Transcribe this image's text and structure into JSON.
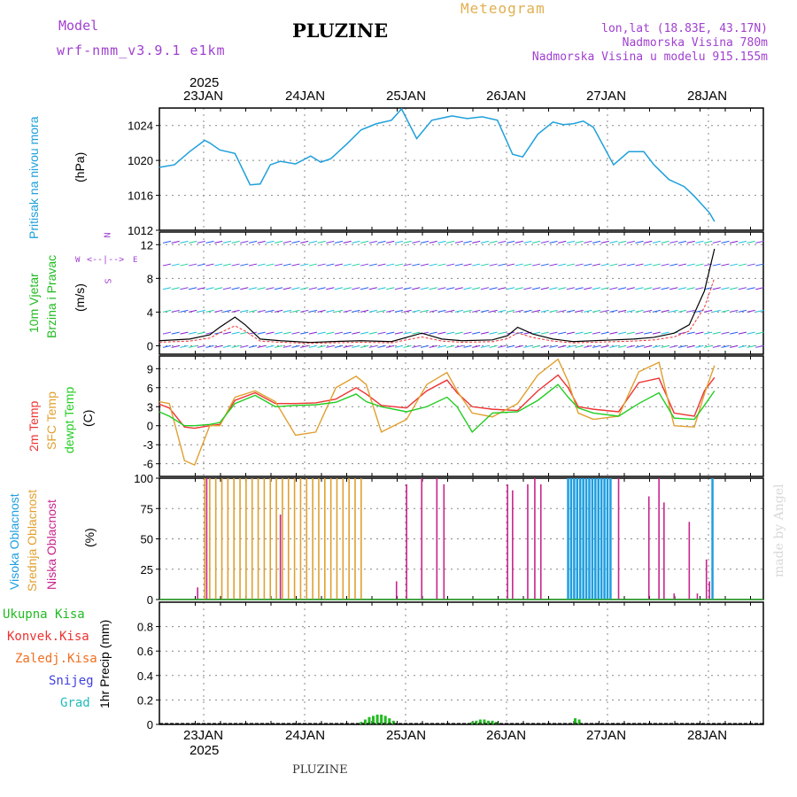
{
  "header": {
    "model_label": "Model",
    "model_name": "wrf-nmm_v3.9.1 e1km",
    "station": "PLUZINE",
    "meteogram": "Meteogram",
    "lonlat": "lon,lat (18.83E, 43.17N)",
    "elevation": "Nadmorska Visina 780m",
    "model_elevation": "Nadmorska Visina u modelu 915.155m",
    "footer_station": "PLUZINE",
    "credit": "made by Angel"
  },
  "time_axis": {
    "year": "2025",
    "day_labels": [
      "23JAN",
      "24JAN",
      "25JAN",
      "26JAN",
      "27JAN",
      "28JAN"
    ]
  },
  "colors": {
    "pressure": "#1ea0dc",
    "wind_label": "#22bb22",
    "temp_2m": "#ee3333",
    "temp_sfc": "#e0a030",
    "dewpoint": "#22cc22",
    "cloud_high": "#1e9ee0",
    "cloud_mid": "#e0a030",
    "cloud_low": "#c8248c",
    "precip": "#22bb22",
    "header_purple": "#a040d0",
    "header_orange": "#e0b050"
  },
  "panel_labels": {
    "pressure": {
      "name": "Pritisak na nivou mora",
      "unit": "(hPa)"
    },
    "wind": {
      "name1": "10m Vjetar",
      "name2": "Brzina i Pravac",
      "unit": "(m/s)",
      "compass": [
        "N",
        "S",
        "W",
        "E",
        "<--|-->"
      ]
    },
    "temp": {
      "t2m": "2m Temp",
      "sfc": "SFC Temp",
      "dew": "dewpt Temp",
      "unit": "(C)"
    },
    "cloud": {
      "high": "Visoka Oblacnost",
      "mid": "Srednja Oblacnost",
      "low": "Niska Oblacnost",
      "unit": "(%)"
    },
    "precip": {
      "total": "Ukupna Kisa",
      "conv": "Konvek.Kisa",
      "frozen": "Zaledj.Kisa",
      "snow": "Snijeg",
      "hail": "Grad",
      "unit": "1hr Precip (mm)"
    }
  },
  "chart_data": [
    {
      "type": "line",
      "ylim": [
        1012,
        1026
      ],
      "yticks": [
        "1024",
        "1020",
        "1016",
        "1012"
      ],
      "x_days": [
        0.0,
        0.15,
        0.3,
        0.45,
        0.5,
        0.6,
        0.75,
        0.9,
        1.0,
        1.1,
        1.2,
        1.35,
        1.5,
        1.6,
        1.7,
        1.85,
        2.0,
        2.15,
        2.3,
        2.4,
        2.55,
        2.7,
        2.9,
        3.05,
        3.2,
        3.35,
        3.5,
        3.6,
        3.75,
        3.9,
        4.0,
        4.1,
        4.2,
        4.3,
        4.5,
        4.65,
        4.8,
        4.9,
        5.05,
        5.2,
        5.3,
        5.45,
        5.5
      ],
      "series": [
        {
          "values": [
            1019.2,
            1019.5,
            1021.0,
            1022.3,
            1022.0,
            1021.2,
            1020.8,
            1017.2,
            1017.3,
            1019.5,
            1019.9,
            1019.6,
            1020.5,
            1019.8,
            1020.2,
            1021.8,
            1023.5,
            1024.2,
            1024.6,
            1025.9,
            1022.5,
            1024.6,
            1025.1,
            1024.8,
            1025.0,
            1024.6,
            1020.7,
            1020.4,
            1023.0,
            1024.4,
            1024.1,
            1024.2,
            1024.5,
            1023.8,
            1019.5,
            1021.0,
            1021.0,
            1019.5,
            1017.8,
            1017.0,
            1015.9,
            1014.0,
            1013.0
          ]
        }
      ]
    },
    {
      "type": "line",
      "ylim": [
        -1,
        13.5
      ],
      "yticks": [
        "12",
        "8",
        "4",
        "0"
      ],
      "x_days": [
        0.0,
        0.3,
        0.5,
        0.6,
        0.75,
        0.85,
        1.0,
        1.2,
        1.5,
        1.7,
        2.0,
        2.3,
        2.6,
        2.8,
        3.0,
        3.3,
        3.45,
        3.55,
        3.7,
        3.9,
        4.1,
        4.3,
        4.5,
        4.7,
        4.9,
        5.1,
        5.25,
        5.4,
        5.5
      ],
      "series": [
        {
          "name": "",
          "values": [
            0.6,
            0.8,
            1.3,
            2.2,
            3.4,
            2.5,
            0.8,
            0.6,
            0.4,
            0.5,
            0.6,
            0.5,
            1.5,
            0.8,
            0.6,
            0.7,
            1.2,
            2.2,
            1.4,
            0.8,
            0.5,
            0.6,
            0.7,
            0.8,
            1.0,
            1.5,
            2.5,
            6.5,
            11.5
          ]
        }
      ]
    },
    {
      "type": "line",
      "ylim": [
        -8,
        11
      ],
      "yticks": [
        "9",
        "6",
        "3",
        "0",
        "-3",
        "-6"
      ],
      "x_days": [
        0.0,
        0.1,
        0.25,
        0.35,
        0.5,
        0.6,
        0.75,
        0.95,
        1.15,
        1.35,
        1.55,
        1.75,
        1.95,
        2.05,
        2.2,
        2.45,
        2.65,
        2.85,
        2.95,
        3.1,
        3.3,
        3.55,
        3.75,
        3.95,
        4.05,
        4.15,
        4.3,
        4.55,
        4.75,
        4.95,
        5.1,
        5.3,
        5.4,
        5.5
      ],
      "series": [
        {
          "name": "2m Temp",
          "values": [
            3.4,
            2.8,
            -0.2,
            -0.4,
            0.0,
            0.2,
            4.0,
            5.2,
            3.5,
            3.5,
            3.6,
            4.2,
            6.0,
            5.0,
            3.2,
            2.8,
            5.5,
            7.2,
            5.2,
            3.0,
            2.6,
            2.4,
            5.5,
            8.0,
            6.0,
            3.0,
            2.6,
            2.2,
            6.8,
            7.5,
            2.0,
            1.5,
            5.5,
            7.6
          ]
        },
        {
          "name": "SFC Temp",
          "values": [
            3.8,
            3.5,
            -5.5,
            -6.2,
            0.0,
            0.0,
            4.5,
            5.5,
            3.8,
            -1.5,
            -1.0,
            6.0,
            7.8,
            6.5,
            -1.0,
            1.0,
            6.5,
            8.4,
            5.5,
            2.0,
            1.4,
            3.5,
            8.0,
            10.5,
            7.0,
            2.0,
            1.0,
            1.5,
            8.5,
            10.0,
            0.0,
            -0.2,
            5.0,
            9.5
          ]
        },
        {
          "name": "dewpt Temp",
          "values": [
            2.2,
            1.5,
            0.0,
            0.0,
            0.2,
            0.5,
            3.5,
            4.8,
            3.0,
            3.2,
            3.3,
            3.7,
            5.0,
            3.8,
            3.0,
            2.2,
            3.0,
            4.5,
            3.0,
            -1.0,
            2.0,
            2.2,
            4.0,
            6.5,
            4.5,
            2.8,
            2.0,
            1.5,
            3.5,
            5.2,
            1.2,
            1.0,
            3.2,
            5.5
          ]
        }
      ]
    },
    {
      "type": "bar",
      "ylim": [
        0,
        100
      ],
      "yticks": [
        "100",
        "75",
        "50",
        "25",
        "0"
      ],
      "series": [
        {
          "name": "Visoka Oblacnost",
          "x_days": [
            0.0,
            4.05,
            4.08,
            4.11,
            4.14,
            4.17,
            4.2,
            4.23,
            4.26,
            4.29,
            4.32,
            4.35,
            4.38,
            4.41,
            4.44,
            4.47,
            5.48
          ],
          "values": [
            0,
            100,
            100,
            100,
            100,
            100,
            100,
            100,
            100,
            100,
            100,
            100,
            100,
            100,
            100,
            100,
            100
          ]
        },
        {
          "name": "Srednja Oblacnost",
          "x_days": [
            0.45,
            0.5,
            0.56,
            0.62,
            0.68,
            0.74,
            0.8,
            0.86,
            0.92,
            0.98,
            1.04,
            1.1,
            1.16,
            1.22,
            1.28,
            1.34,
            1.4,
            1.46,
            1.52,
            1.58,
            1.64,
            1.7,
            1.76,
            1.82,
            1.88,
            1.94,
            2.0
          ],
          "values": [
            100,
            100,
            100,
            100,
            100,
            100,
            100,
            100,
            100,
            100,
            100,
            100,
            100,
            100,
            100,
            100,
            100,
            100,
            100,
            100,
            100,
            100,
            100,
            100,
            100,
            100,
            100
          ]
        },
        {
          "name": "Niska Oblacnost",
          "x_days": [
            0.38,
            0.47,
            1.2,
            2.35,
            2.45,
            2.6,
            2.75,
            2.82,
            3.45,
            3.5,
            3.65,
            3.72,
            3.78,
            4.55,
            4.85,
            4.95,
            5.0,
            5.1,
            5.25,
            5.33,
            5.42,
            5.45
          ],
          "values": [
            10,
            100,
            70,
            15,
            95,
            100,
            100,
            95,
            95,
            90,
            95,
            100,
            95,
            100,
            85,
            100,
            80,
            5,
            64,
            5,
            33,
            15
          ]
        }
      ]
    },
    {
      "type": "bar",
      "ylim": [
        0,
        1.0
      ],
      "yticks": [
        "0.8",
        "0.6",
        "0.4",
        "0.2",
        "0"
      ],
      "series": [
        {
          "name": "Ukupna Kisa",
          "x_days": [
            2.0,
            2.04,
            2.08,
            2.12,
            2.16,
            2.2,
            2.24,
            2.28,
            2.32,
            3.1,
            3.14,
            3.18,
            3.22,
            3.26,
            3.3,
            3.34,
            4.12,
            4.16
          ],
          "values": [
            0.02,
            0.04,
            0.06,
            0.07,
            0.08,
            0.08,
            0.07,
            0.05,
            0.03,
            0.02,
            0.03,
            0.04,
            0.04,
            0.03,
            0.03,
            0.02,
            0.05,
            0.04
          ]
        }
      ]
    }
  ]
}
